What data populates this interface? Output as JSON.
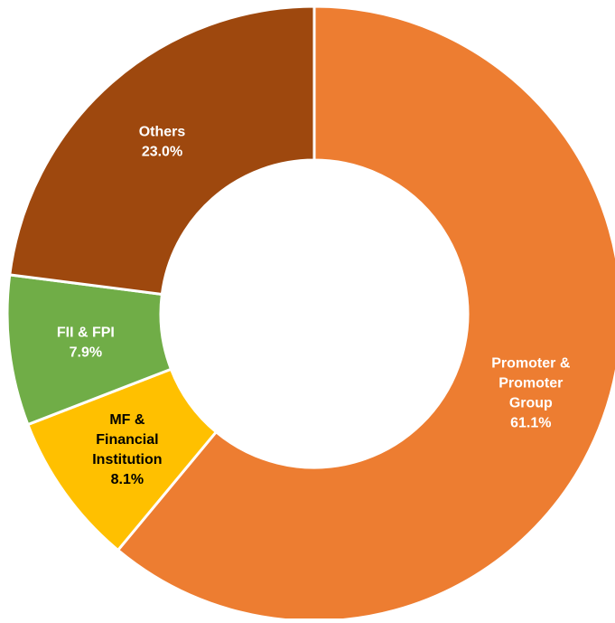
{
  "chart_data": {
    "type": "donut",
    "categories": [
      "Promoter & Promoter Group",
      "MF & Financial Institution",
      "FII & FPI",
      "Others"
    ],
    "values": [
      61.1,
      8.1,
      7.9,
      23.0
    ],
    "value_labels": [
      "61.1%",
      "8.1%",
      "7.9%",
      "23.0%"
    ],
    "colors": [
      "#ED7D31",
      "#FFC000",
      "#70AD47",
      "#9E480E"
    ],
    "label_colors": [
      "#ffffff",
      "#000000",
      "#ffffff",
      "#ffffff"
    ]
  }
}
